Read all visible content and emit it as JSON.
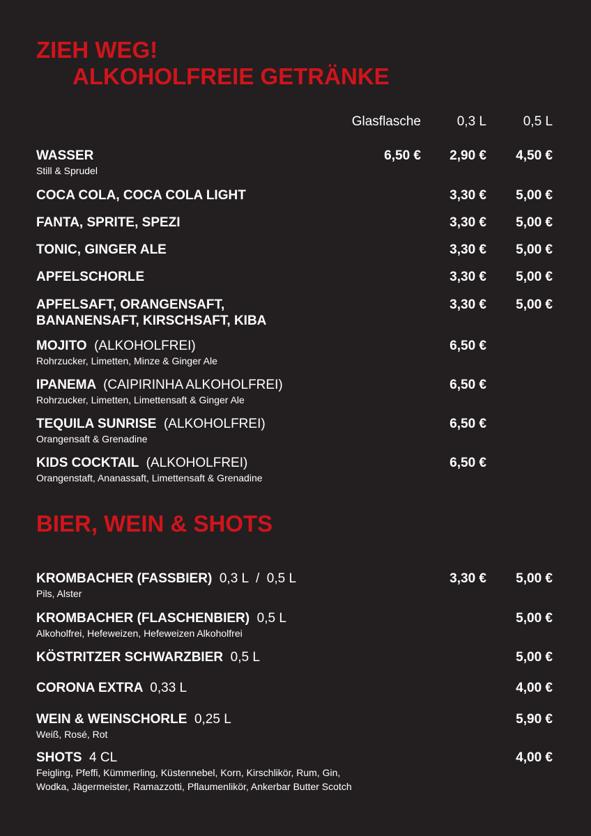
{
  "header": {
    "title_line1": "ZIEH WEG!",
    "title_line2": "ALKOHOLFREIE GETRÄNKE"
  },
  "columns": [
    "Glasflasche",
    "0,3 L",
    "0,5 L"
  ],
  "sections": [
    {
      "items": [
        {
          "name": "WASSER",
          "sub": "Still & Sprudel",
          "prices": {
            "glas": "6,50 €",
            "p03": "2,90 €",
            "p05": "4,50 €"
          }
        },
        {
          "name": "COCA COLA, COCA COLA LIGHT",
          "prices": {
            "p03": "3,30 €",
            "p05": "5,00 €"
          }
        },
        {
          "name": "FANTA, SPRITE, SPEZI",
          "prices": {
            "p03": "3,30 €",
            "p05": "5,00 €"
          }
        },
        {
          "name": "TONIC, GINGER ALE",
          "prices": {
            "p03": "3,30 €",
            "p05": "5,00 €"
          }
        },
        {
          "name": "APFELSCHORLE",
          "prices": {
            "p03": "3,30 €",
            "p05": "5,00 €"
          }
        },
        {
          "name": [
            "APFELSAFT, ORANGENSAFT,",
            "BANANENSAFT, KIRSCHSAFT, KIBA"
          ],
          "prices": {
            "p03": "3,30 €",
            "p05": "5,00 €"
          }
        },
        {
          "name": "MOJITO",
          "suffix": "(ALKOHOLFREI)",
          "sub": "Rohrzucker, Limetten, Minze & Ginger Ale",
          "prices": {
            "p03": "6,50 €"
          }
        },
        {
          "name": "IPANEMA",
          "suffix": "(CAIPIRINHA ALKOHOLFREI)",
          "sub": "Rohrzucker, Limetten, Limettensaft & Ginger Ale",
          "prices": {
            "p03": "6,50 €"
          }
        },
        {
          "name": "TEQUILA SUNRISE",
          "suffix": "(ALKOHOLFREI)",
          "sub": "Orangensaft & Grenadine",
          "prices": {
            "p03": "6,50 €"
          }
        },
        {
          "name": "KIDS COCKTAIL",
          "suffix": "(ALKOHOLFREI)",
          "sub": "Orangenstaft, Ananassaft, Limettensaft & Grenadine",
          "prices": {
            "p03": "6,50 €"
          }
        }
      ]
    },
    {
      "title": "BIER, WEIN & SHOTS",
      "items": [
        {
          "name": "KROMBACHER (FASSBIER)",
          "suffix": "0,3 L  /  0,5 L",
          "sub": "Pils, Alster",
          "prices": {
            "p03": "3,30 €",
            "p05": "5,00 €"
          }
        },
        {
          "name": "KROMBACHER (FLASCHENBIER)",
          "suffix": "0,5 L",
          "sub": "Alkoholfrei, Hefeweizen, Hefeweizen Alkoholfrei",
          "prices": {
            "p05": "5,00 €"
          }
        },
        {
          "name": "KÖSTRITZER SCHWARZBIER",
          "suffix": "0,5 L",
          "prices": {
            "p05": "5,00 €"
          }
        },
        {
          "name": "CORONA EXTRA",
          "suffix": "0,33 L",
          "prices": {
            "p05": "4,00 €"
          }
        },
        {
          "name": "WEIN & WEINSCHORLE",
          "suffix": "0,25 L",
          "sub": "Weiß, Rosé, Rot",
          "prices": {
            "p05": "5,90 €"
          }
        },
        {
          "name": "SHOTS",
          "suffix": "4 CL",
          "sub": [
            "Feigling, Pfeffi, Kümmerling, Küstennebel, Korn, Kirschlikör, Rum, Gin,",
            "Wodka, Jägermeister, Ramazzotti, Pflaumenlikör, Ankerbar Butter Scotch"
          ],
          "prices": {
            "p05": "4,00 €"
          }
        }
      ]
    }
  ]
}
